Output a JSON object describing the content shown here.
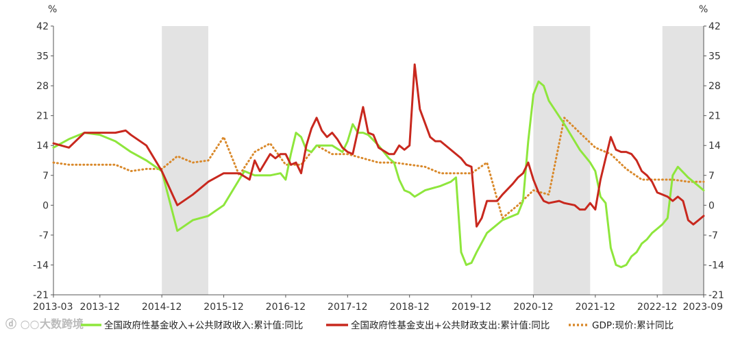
{
  "watermark": "大数跨境",
  "chart_data": {
    "type": "line",
    "y_unit_left": "%",
    "y_unit_right": "%",
    "ylim": [
      -21,
      42
    ],
    "yticks": [
      -21,
      -14,
      -7,
      0,
      7,
      14,
      21,
      28,
      35,
      42
    ],
    "xlim": [
      "2013-03",
      "2023-09"
    ],
    "xticks": [
      "2013-03",
      "2013-12",
      "2014-12",
      "2015-12",
      "2016-12",
      "2017-12",
      "2018-12",
      "2019-12",
      "2020-12",
      "2021-12",
      "2022-12",
      "2023-09"
    ],
    "grid": false,
    "legend_position": "bottom",
    "shaded_periods": [
      [
        "2014-12",
        "2015-09"
      ],
      [
        "2020-12",
        "2021-11"
      ],
      [
        "2023-01",
        "2023-09"
      ]
    ],
    "series": [
      {
        "name": "全国政府性基金收入+公共财政收入:累计值:同比",
        "color": "#8ee63c",
        "style": "solid",
        "points": [
          [
            "2013-03",
            13.5
          ],
          [
            "2013-06",
            15.5
          ],
          [
            "2013-09",
            17
          ],
          [
            "2013-12",
            16.5
          ],
          [
            "2014-03",
            15
          ],
          [
            "2014-06",
            12.5
          ],
          [
            "2014-09",
            10.5
          ],
          [
            "2014-12",
            8
          ],
          [
            "2015-03",
            -6
          ],
          [
            "2015-06",
            -3.5
          ],
          [
            "2015-09",
            -2.5
          ],
          [
            "2015-12",
            0
          ],
          [
            "2016-03",
            6
          ],
          [
            "2016-04",
            8
          ],
          [
            "2016-05",
            7.5
          ],
          [
            "2016-06",
            7
          ],
          [
            "2016-09",
            7
          ],
          [
            "2016-11",
            7.5
          ],
          [
            "2016-12",
            6
          ],
          [
            "2017-01",
            12
          ],
          [
            "2017-02",
            17
          ],
          [
            "2017-03",
            16
          ],
          [
            "2017-04",
            13
          ],
          [
            "2017-05",
            12.5
          ],
          [
            "2017-06",
            14
          ],
          [
            "2017-09",
            14
          ],
          [
            "2017-11",
            12.5
          ],
          [
            "2017-12",
            15
          ],
          [
            "2018-01",
            19
          ],
          [
            "2018-02",
            17
          ],
          [
            "2018-03",
            17
          ],
          [
            "2018-04",
            16.5
          ],
          [
            "2018-06",
            14
          ],
          [
            "2018-08",
            11
          ],
          [
            "2018-09",
            10
          ],
          [
            "2018-10",
            6
          ],
          [
            "2018-11",
            3.5
          ],
          [
            "2018-12",
            3
          ],
          [
            "2019-01",
            2
          ],
          [
            "2019-03",
            3.5
          ],
          [
            "2019-06",
            4.5
          ],
          [
            "2019-08",
            5.5
          ],
          [
            "2019-09",
            6.5
          ],
          [
            "2019-10",
            -11
          ],
          [
            "2019-11",
            -14
          ],
          [
            "2019-12",
            -13.5
          ],
          [
            "2020-01",
            -11
          ],
          [
            "2020-03",
            -6.5
          ],
          [
            "2020-06",
            -3.5
          ],
          [
            "2020-09",
            -2
          ],
          [
            "2020-10",
            1
          ],
          [
            "2020-11",
            15
          ],
          [
            "2020-12",
            26
          ],
          [
            "2021-01",
            29
          ],
          [
            "2021-02",
            28
          ],
          [
            "2021-03",
            24.5
          ],
          [
            "2021-06",
            19
          ],
          [
            "2021-09",
            13
          ],
          [
            "2021-11",
            10
          ],
          [
            "2021-12",
            8
          ],
          [
            "2022-01",
            2
          ],
          [
            "2022-02",
            0.5
          ],
          [
            "2022-03",
            -10
          ],
          [
            "2022-04",
            -14
          ],
          [
            "2022-05",
            -14.5
          ],
          [
            "2022-06",
            -14
          ],
          [
            "2022-07",
            -12
          ],
          [
            "2022-08",
            -11
          ],
          [
            "2022-09",
            -9
          ],
          [
            "2022-10",
            -8
          ],
          [
            "2022-11",
            -6.5
          ],
          [
            "2022-12",
            -5.5
          ],
          [
            "2023-01",
            -4.5
          ],
          [
            "2023-02",
            -3
          ],
          [
            "2023-03",
            7
          ],
          [
            "2023-04",
            9
          ],
          [
            "2023-06",
            6.5
          ],
          [
            "2023-08",
            4.5
          ],
          [
            "2023-09",
            3.5
          ]
        ]
      },
      {
        "name": "全国政府性基金支出+公共财政支出:累计值:同比",
        "color": "#c8281e",
        "style": "solid",
        "points": [
          [
            "2013-03",
            14.5
          ],
          [
            "2013-06",
            13.5
          ],
          [
            "2013-09",
            17
          ],
          [
            "2013-12",
            17
          ],
          [
            "2014-03",
            17
          ],
          [
            "2014-05",
            17.5
          ],
          [
            "2014-06",
            16.5
          ],
          [
            "2014-09",
            14
          ],
          [
            "2014-12",
            8
          ],
          [
            "2015-03",
            0
          ],
          [
            "2015-06",
            2.5
          ],
          [
            "2015-09",
            5.5
          ],
          [
            "2015-12",
            7.5
          ],
          [
            "2016-03",
            7.5
          ],
          [
            "2016-05",
            6
          ],
          [
            "2016-06",
            10.5
          ],
          [
            "2016-07",
            8
          ],
          [
            "2016-09",
            12
          ],
          [
            "2016-10",
            11
          ],
          [
            "2016-11",
            12
          ],
          [
            "2016-12",
            12
          ],
          [
            "2017-01",
            9.5
          ],
          [
            "2017-02",
            10
          ],
          [
            "2017-03",
            7.5
          ],
          [
            "2017-04",
            14
          ],
          [
            "2017-05",
            18
          ],
          [
            "2017-06",
            20.5
          ],
          [
            "2017-07",
            17.5
          ],
          [
            "2017-08",
            16
          ],
          [
            "2017-09",
            17
          ],
          [
            "2017-10",
            15.5
          ],
          [
            "2017-11",
            13.5
          ],
          [
            "2017-12",
            12.5
          ],
          [
            "2018-01",
            12
          ],
          [
            "2018-03",
            23
          ],
          [
            "2018-04",
            17
          ],
          [
            "2018-05",
            16.5
          ],
          [
            "2018-06",
            13.5
          ],
          [
            "2018-08",
            12
          ],
          [
            "2018-09",
            12
          ],
          [
            "2018-10",
            14
          ],
          [
            "2018-11",
            13
          ],
          [
            "2018-12",
            14
          ],
          [
            "2019-01",
            33
          ],
          [
            "2019-02",
            22.5
          ],
          [
            "2019-04",
            16
          ],
          [
            "2019-05",
            15
          ],
          [
            "2019-06",
            15
          ],
          [
            "2019-08",
            13
          ],
          [
            "2019-10",
            11
          ],
          [
            "2019-11",
            9.5
          ],
          [
            "2019-12",
            9
          ],
          [
            "2020-01",
            -5
          ],
          [
            "2020-02",
            -3
          ],
          [
            "2020-03",
            1
          ],
          [
            "2020-05",
            1
          ],
          [
            "2020-06",
            2.5
          ],
          [
            "2020-08",
            5
          ],
          [
            "2020-09",
            6.5
          ],
          [
            "2020-10",
            7.5
          ],
          [
            "2020-11",
            10
          ],
          [
            "2020-12",
            6
          ],
          [
            "2021-01",
            3
          ],
          [
            "2021-02",
            1
          ],
          [
            "2021-03",
            0.5
          ],
          [
            "2021-05",
            1
          ],
          [
            "2021-06",
            0.5
          ],
          [
            "2021-08",
            0
          ],
          [
            "2021-09",
            -1
          ],
          [
            "2021-10",
            -1
          ],
          [
            "2021-11",
            0.5
          ],
          [
            "2021-12",
            -1
          ],
          [
            "2022-01",
            6
          ],
          [
            "2022-02",
            11
          ],
          [
            "2022-03",
            16
          ],
          [
            "2022-04",
            13
          ],
          [
            "2022-05",
            12.5
          ],
          [
            "2022-06",
            12.5
          ],
          [
            "2022-07",
            12
          ],
          [
            "2022-08",
            10.5
          ],
          [
            "2022-09",
            8
          ],
          [
            "2022-10",
            7
          ],
          [
            "2022-11",
            5.5
          ],
          [
            "2022-12",
            3
          ],
          [
            "2023-01",
            2.5
          ],
          [
            "2023-02",
            2
          ],
          [
            "2023-03",
            1
          ],
          [
            "2023-04",
            2
          ],
          [
            "2023-05",
            1
          ],
          [
            "2023-06",
            -3.5
          ],
          [
            "2023-07",
            -4.5
          ],
          [
            "2023-08",
            -3.5
          ],
          [
            "2023-09",
            -2.5
          ]
        ]
      },
      {
        "name": "GDP:现价:累计同比",
        "color": "#d9892b",
        "style": "dotted",
        "points": [
          [
            "2013-03",
            10
          ],
          [
            "2013-06",
            9.5
          ],
          [
            "2013-09",
            9.5
          ],
          [
            "2013-12",
            9.5
          ],
          [
            "2014-03",
            9.5
          ],
          [
            "2014-06",
            8
          ],
          [
            "2014-09",
            8.5
          ],
          [
            "2014-12",
            8.5
          ],
          [
            "2015-03",
            11.5
          ],
          [
            "2015-06",
            10
          ],
          [
            "2015-09",
            10.5
          ],
          [
            "2015-12",
            16
          ],
          [
            "2016-03",
            7
          ],
          [
            "2016-06",
            12.5
          ],
          [
            "2016-09",
            14.5
          ],
          [
            "2016-12",
            9.5
          ],
          [
            "2017-03",
            9.5
          ],
          [
            "2017-06",
            14
          ],
          [
            "2017-09",
            12
          ],
          [
            "2017-12",
            12
          ],
          [
            "2018-03",
            11
          ],
          [
            "2018-06",
            10
          ],
          [
            "2018-09",
            10
          ],
          [
            "2018-12",
            9.5
          ],
          [
            "2019-03",
            9
          ],
          [
            "2019-06",
            7.5
          ],
          [
            "2019-09",
            7.5
          ],
          [
            "2019-12",
            7.5
          ],
          [
            "2020-03",
            10
          ],
          [
            "2020-06",
            -3
          ],
          [
            "2020-09",
            0
          ],
          [
            "2020-12",
            3.5
          ],
          [
            "2021-03",
            2.5
          ],
          [
            "2021-06",
            20.5
          ],
          [
            "2021-09",
            17
          ],
          [
            "2021-12",
            13.5
          ],
          [
            "2022-03",
            12
          ],
          [
            "2022-06",
            8.5
          ],
          [
            "2022-09",
            6
          ],
          [
            "2022-12",
            6
          ],
          [
            "2023-03",
            6
          ],
          [
            "2023-06",
            5.5
          ],
          [
            "2023-09",
            5.5
          ]
        ]
      }
    ]
  }
}
